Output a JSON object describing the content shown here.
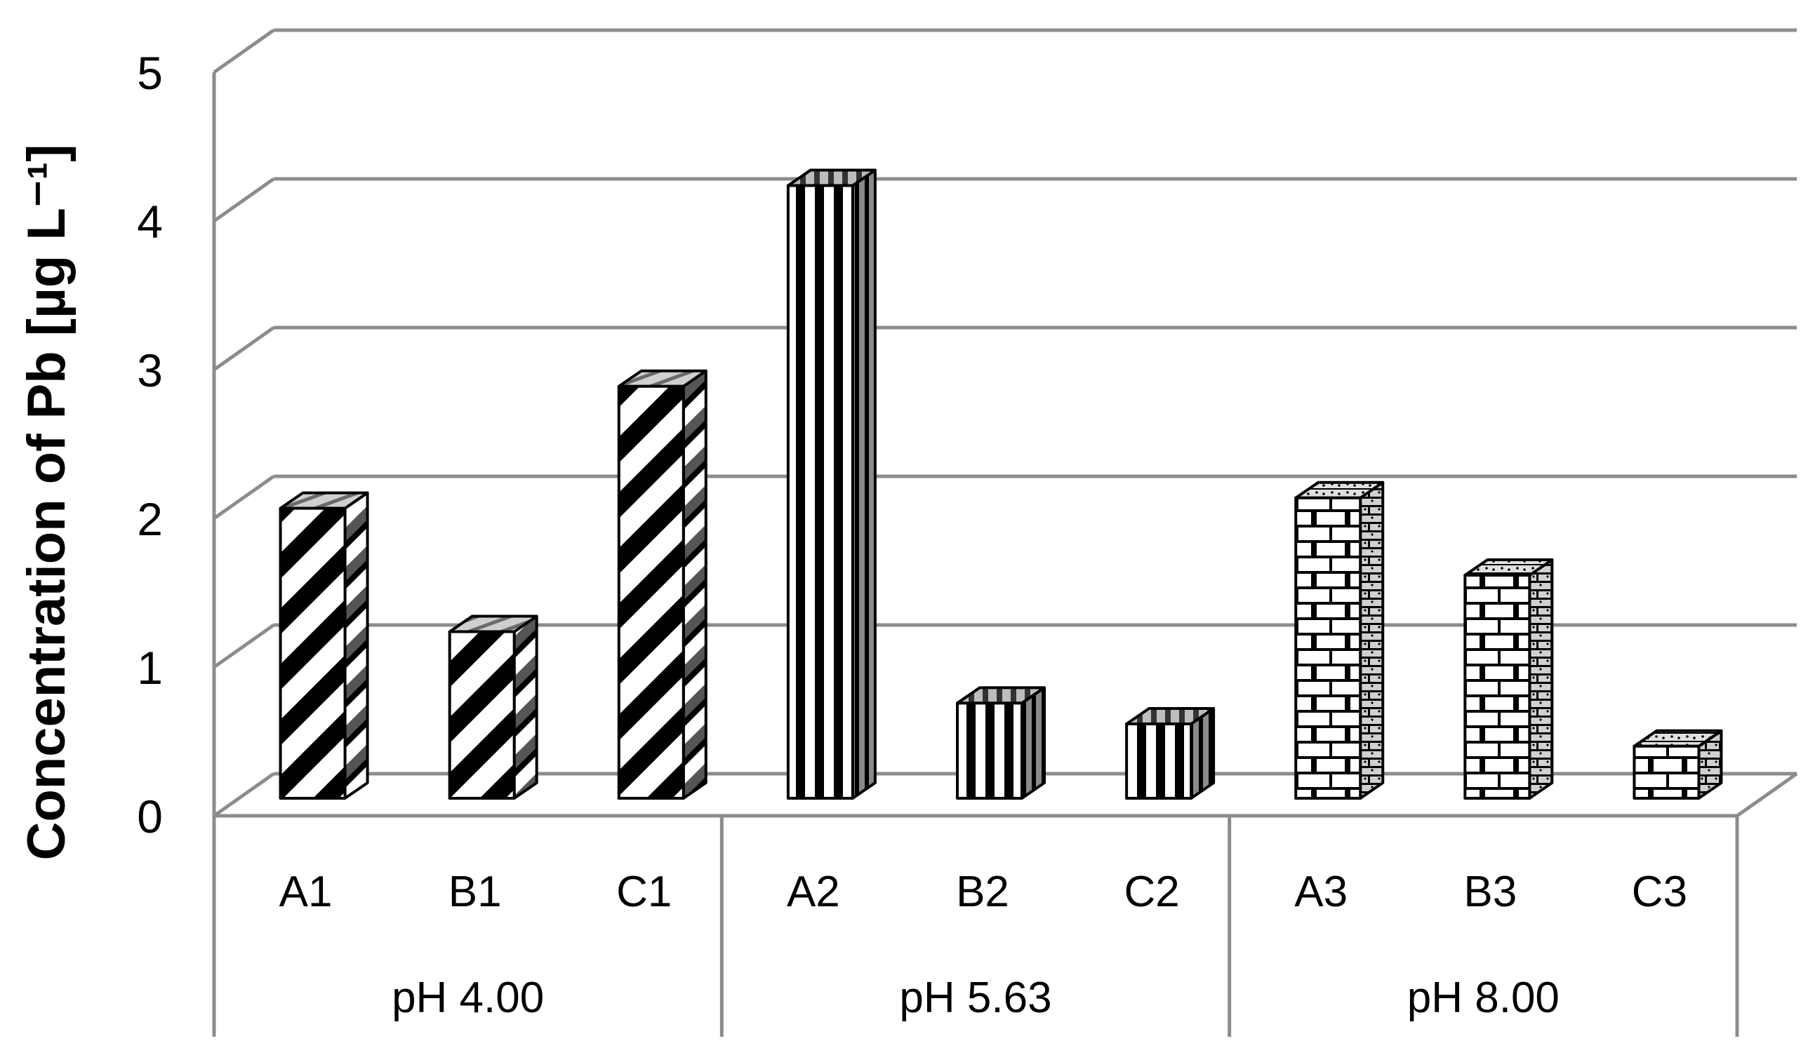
{
  "chart_data": {
    "type": "bar",
    "title": "",
    "xlabel": "",
    "ylabel": "Concentration of Pb  [µg L⁻¹]",
    "ylim": [
      0,
      5
    ],
    "yticks": [
      0,
      1,
      2,
      3,
      4,
      5
    ],
    "grid": true,
    "style": "3d-column",
    "groups": [
      {
        "label": "pH 4.00",
        "pattern": "diagonal",
        "bars": [
          {
            "category": "A1",
            "value": 1.95
          },
          {
            "category": "B1",
            "value": 1.12
          },
          {
            "category": "C1",
            "value": 2.77
          }
        ]
      },
      {
        "label": "pH 5.63",
        "pattern": "vertical",
        "bars": [
          {
            "category": "A2",
            "value": 4.12
          },
          {
            "category": "B2",
            "value": 0.64
          },
          {
            "category": "C2",
            "value": 0.5
          }
        ]
      },
      {
        "label": "pH 8.00",
        "pattern": "brick",
        "bars": [
          {
            "category": "A3",
            "value": 2.02
          },
          {
            "category": "B3",
            "value": 1.5
          },
          {
            "category": "C3",
            "value": 0.35
          }
        ]
      }
    ]
  }
}
